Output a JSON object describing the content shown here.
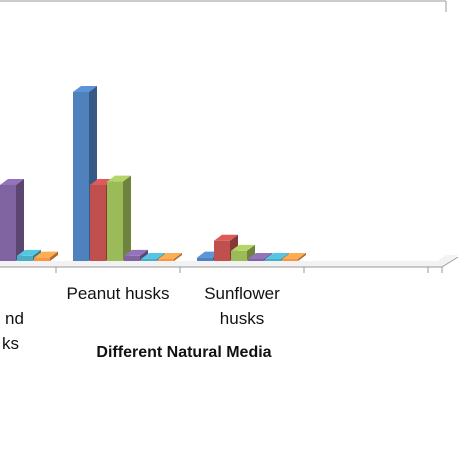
{
  "chart_data": {
    "type": "bar",
    "style": "3d-clustered-column",
    "xlabel": "Different Natural Media",
    "categories": [
      [
        "",
        "nd",
        "ks"
      ],
      [
        "Peanut husks"
      ],
      [
        "Sunflower",
        "husks"
      ],
      [
        ""
      ]
    ],
    "category_count_visible": 4,
    "series": [
      {
        "color": "#4f81bd",
        "values": [
          null,
          100,
          2,
          0
        ]
      },
      {
        "color": "#c0504d",
        "values": [
          null,
          45,
          12,
          0
        ]
      },
      {
        "color": "#9bbb59",
        "values": [
          null,
          47,
          6,
          0
        ]
      },
      {
        "color": "#8064a2",
        "values": [
          45,
          3,
          0.8,
          0
        ]
      },
      {
        "color": "#4bacc6",
        "values": [
          3,
          1,
          0.6,
          0
        ]
      },
      {
        "color": "#f79646",
        "values": [
          2,
          0.5,
          0.5,
          0
        ]
      }
    ],
    "ylim": [
      0,
      100
    ],
    "grid": false,
    "legend": "none"
  }
}
